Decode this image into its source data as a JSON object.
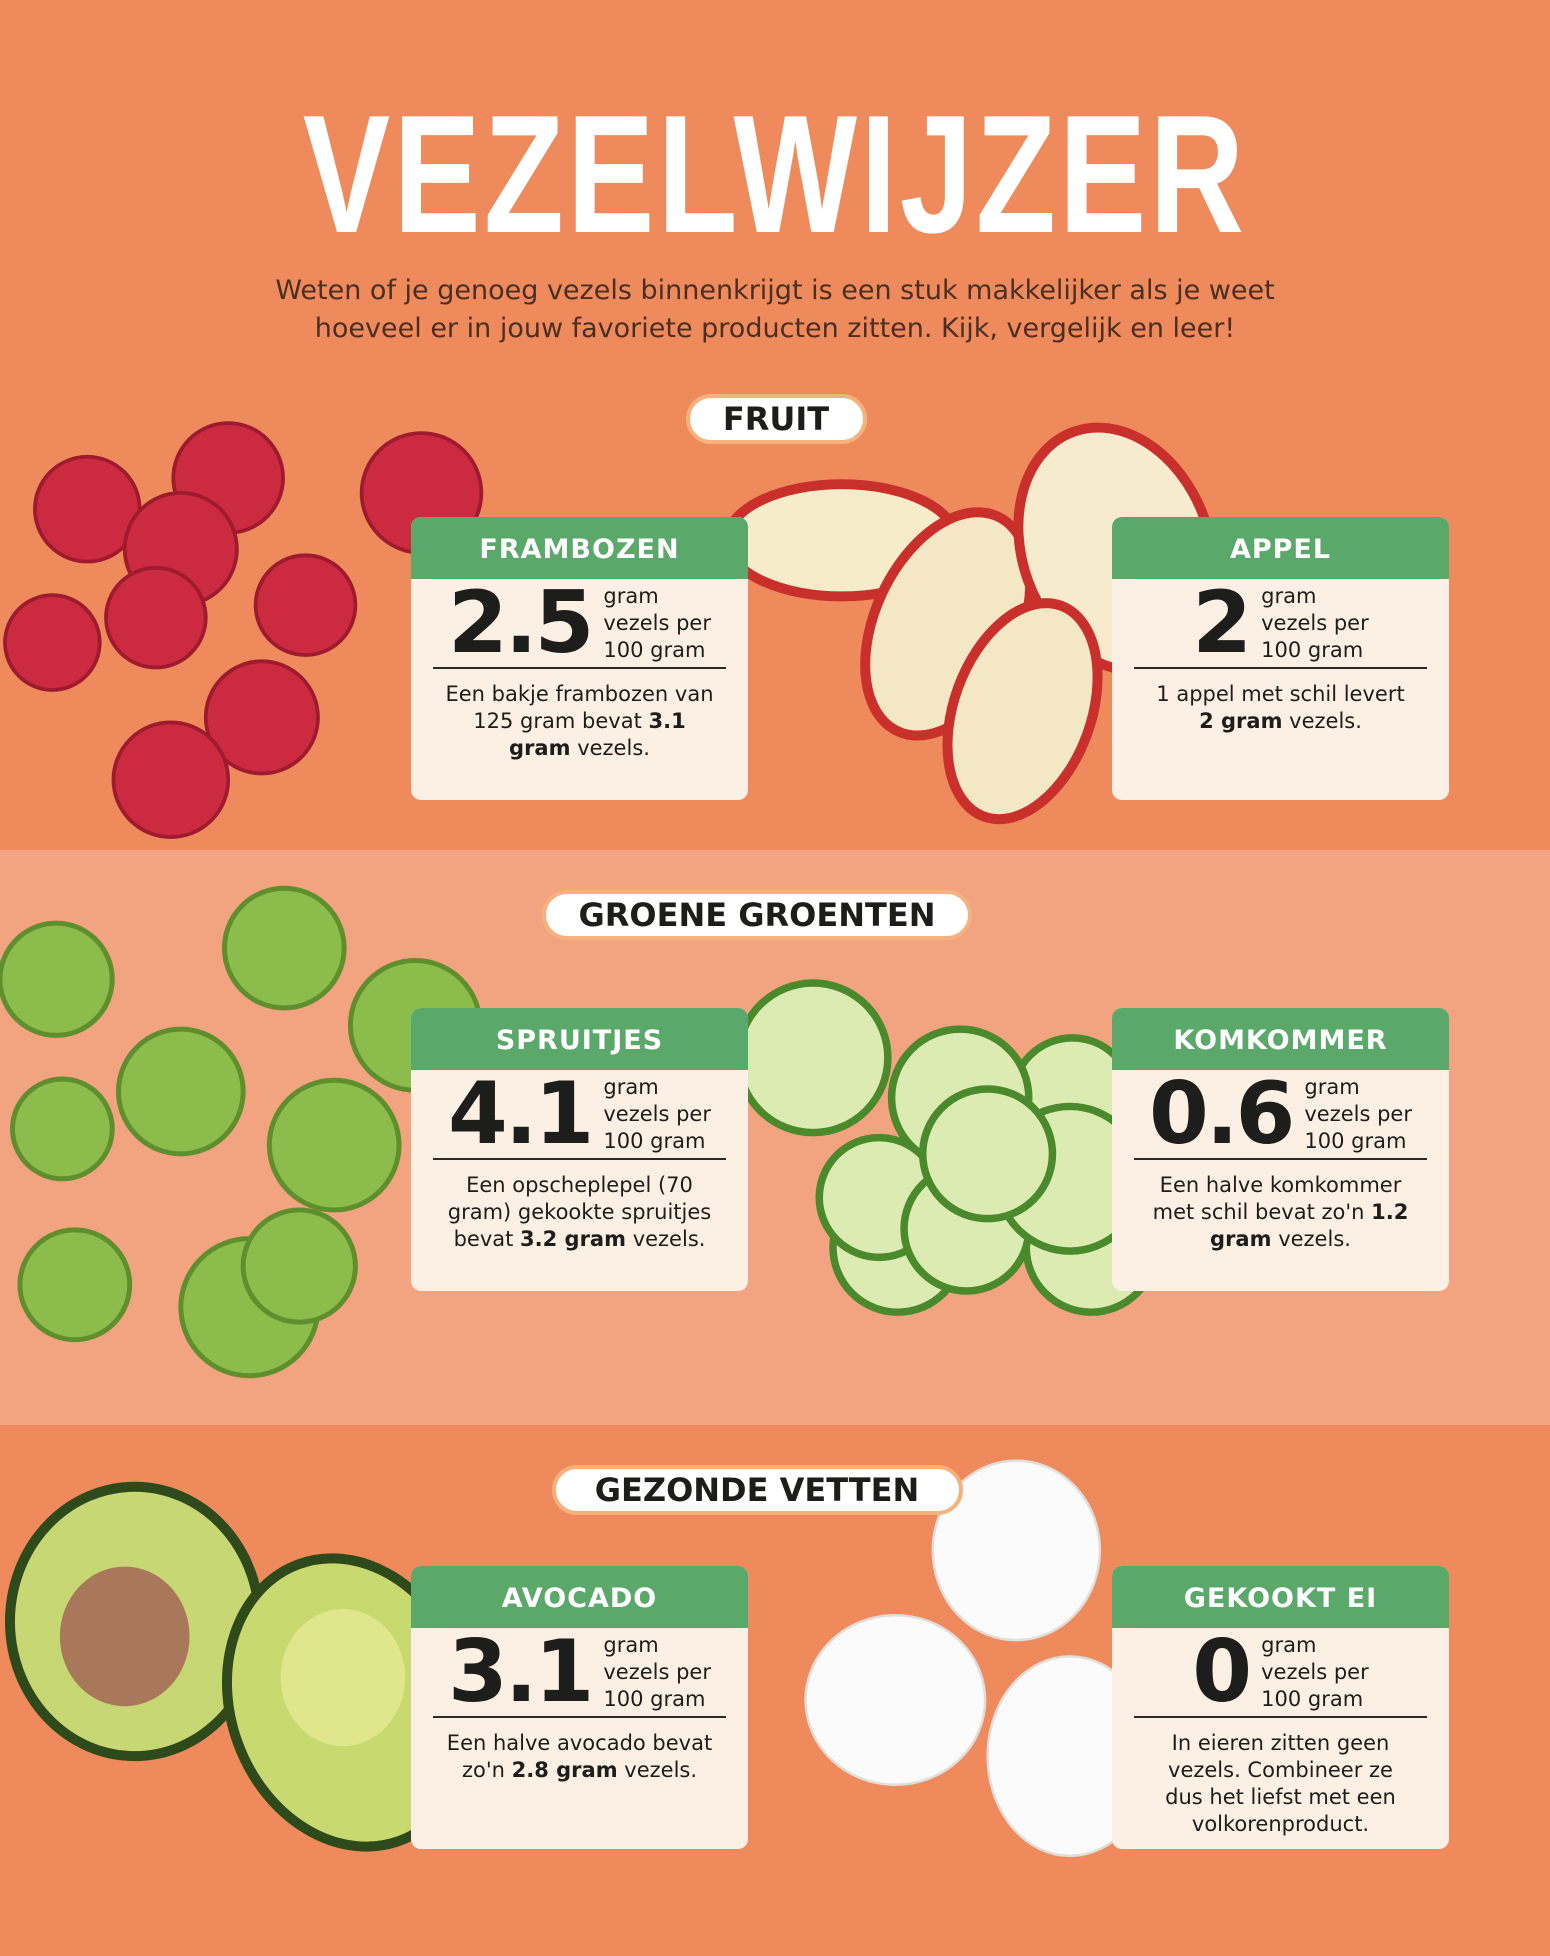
{
  "header": {
    "title": "VEZELWIJZER",
    "subtitle": "Weten of je genoeg vezels binnenkrijgt is een stuk makkelijker als je weet hoeveel er in jouw favoriete producten zitten. Kijk, vergelijk en leer!"
  },
  "sections": [
    {
      "title": "FRUIT",
      "items": [
        {
          "name": "FRAMBOZEN",
          "value": 2.5,
          "unit": [
            "gram",
            "vezels per",
            "100 gram"
          ],
          "note": "Een bakje frambozen van 125 gram bevat",
          "note_bold": "3.1 gram",
          "note_end": "vezels."
        },
        {
          "name": "APPEL",
          "value": 2,
          "unit": [
            "gram",
            "vezels per",
            "100 gram"
          ],
          "note": "1 appel met schil levert",
          "note_bold": "2 gram",
          "note_end": "vezels."
        }
      ]
    },
    {
      "title": "GROENE GROENTEN",
      "items": [
        {
          "name": "SPRUITJES",
          "value": 4.1,
          "unit": [
            "gram",
            "vezels per",
            "100 gram"
          ],
          "note": "Een opscheplepel (70 gram) gekookte spruitjes bevat",
          "note_bold": "3.2 gram",
          "note_end": "vezels."
        },
        {
          "name": "KOMKOMMER",
          "value": 0.6,
          "unit": [
            "gram",
            "vezels per",
            "100 gram"
          ],
          "note": "Een halve komkommer met schil bevat zo'n",
          "note_bold": "1.2 gram",
          "note_end": "vezels."
        }
      ]
    },
    {
      "title": "GEZONDE VETTEN",
      "items": [
        {
          "name": "AVOCADO",
          "value": 3.1,
          "unit": [
            "gram",
            "vezels per",
            "100 gram"
          ],
          "note": "Een halve avocado bevat zo'n",
          "note_bold": "2.8 gram",
          "note_end": "vezels."
        },
        {
          "name": "GEKOOKT EI",
          "value": 0,
          "unit": [
            "gram",
            "vezels per",
            "100 gram"
          ],
          "note": "In eieren zitten geen vezels. Combineer ze dus het liefst met een volkorenproduct."
        }
      ]
    }
  ]
}
